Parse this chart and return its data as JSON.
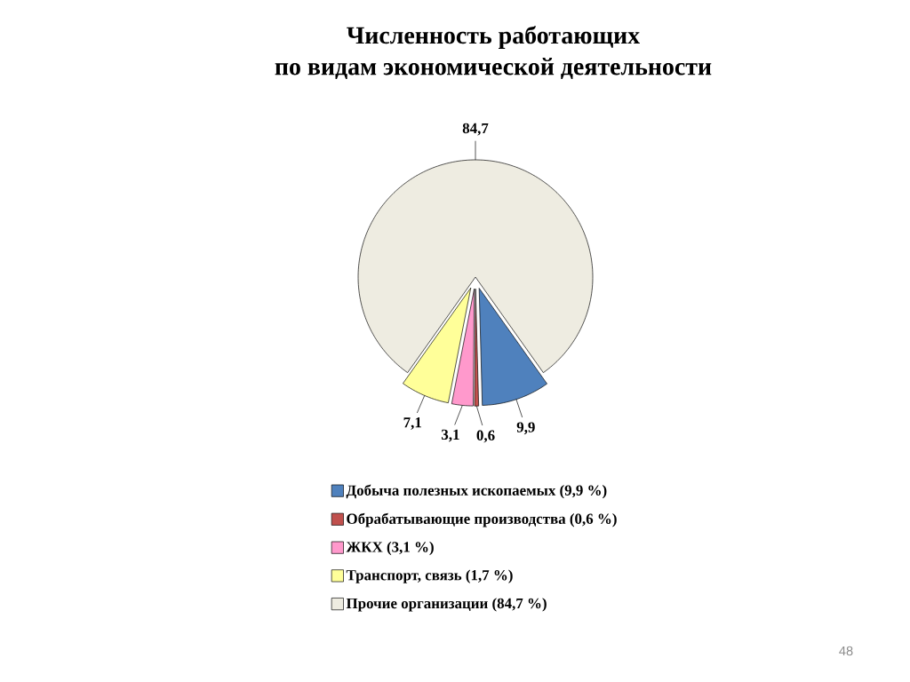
{
  "chart_data": {
    "type": "pie",
    "title": "Численность работающих",
    "subtitle": "по видам экономической деятельности",
    "categories": [
      "Добыча полезных ископаемых (9,9 %)",
      "Обрабатывающие производства (0,6 %)",
      "ЖКХ (3,1 %)",
      "Транспорт, связь (1,7 %)",
      "Прочие организации (84,7 %)"
    ],
    "values": [
      9.9,
      0.6,
      3.1,
      7.1,
      84.7
    ],
    "colors": [
      "#4f81bd",
      "#c0504d",
      "#ff99cc",
      "#ffff99",
      "#eeece1"
    ],
    "value_labels": [
      "9,9",
      "0,6",
      "3,1",
      "7,1",
      "84,7"
    ],
    "legend": "bottom",
    "annotations": [
      "48"
    ]
  }
}
